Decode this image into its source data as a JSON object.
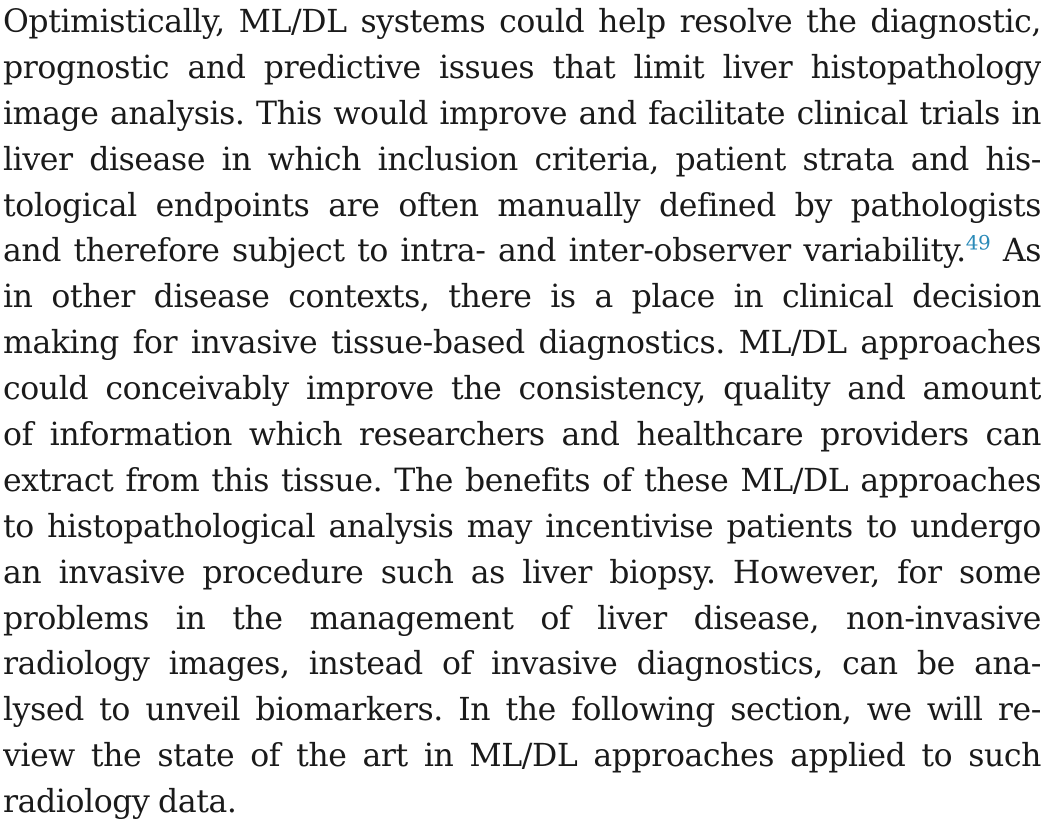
{
  "paragraph": {
    "lines": [
      "Optimistically, ML/DL systems could help resolve the diagnostic,",
      "prognostic and predictive issues that limit liver histopathology",
      "image analysis. This would improve and facilitate clinical trials in",
      "liver disease in which inclusion criteria, patient strata and his-",
      "tological endpoints are often manually defined by pathologists",
      "and therefore subject to intra- and inter-observer variability.",
      "in other disease contexts, there is a place in clinical decision",
      "making for invasive tissue-based diagnostics. ML/DL approaches",
      "could conceivably improve the consistency, quality and amount",
      "of information which researchers and healthcare providers can",
      "extract from this tissue. The benefits of these ML/DL approaches",
      "to histopathological analysis may incentivise patients to undergo",
      "an invasive procedure such as liver biopsy. However, for some",
      "problems in the management of liver disease, non-invasive",
      "radiology images, instead of invasive diagnostics, can be ana-",
      "lysed to unveil biomarkers. In the following section, we will re-",
      "view the state of the art in ML/DL approaches applied to such",
      "radiology data."
    ],
    "citation": "49",
    "line6_tail": "As",
    "link_color": "#2a8ab8"
  }
}
